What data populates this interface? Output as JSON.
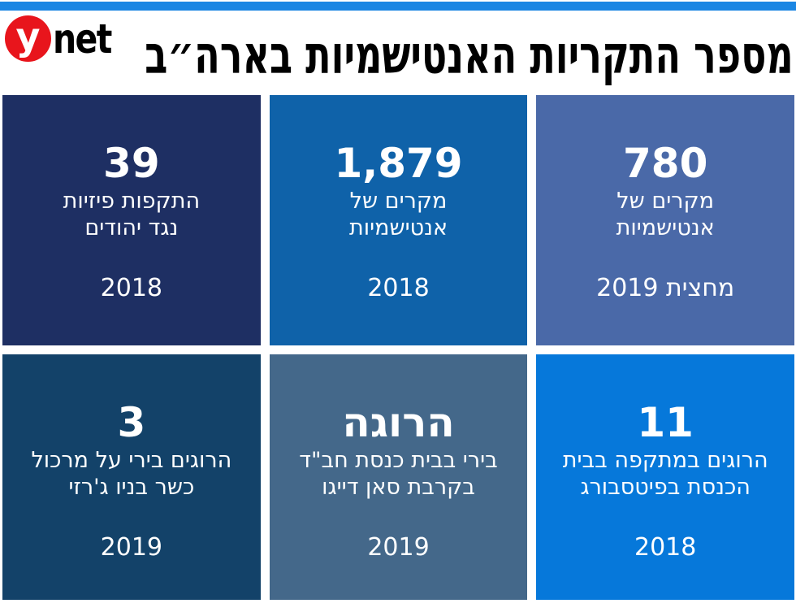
{
  "topbar": {
    "color": "#1b86e3"
  },
  "brand": {
    "logo_y": "y",
    "logo_net": "net",
    "logo_red": "#e8151c"
  },
  "header": {
    "title": "מספר התקריות האנטישמיות בארה״ב"
  },
  "tiles": [
    {
      "name": "antisemitism-cases-2019h",
      "number": "780",
      "desc_line1": "מקרים של",
      "desc_line2": "אנטישמיות",
      "year": "מחצית 2019",
      "bg": "#4a69a8"
    },
    {
      "name": "antisemitism-cases-2018",
      "number": "1,879",
      "desc_line1": "מקרים של",
      "desc_line2": "אנטישמיות",
      "year": "2018",
      "bg": "#0f62a9"
    },
    {
      "name": "physical-attacks-2018",
      "number": "39",
      "desc_line1": "התקפות פיזיות",
      "desc_line2": "נגד יהודים",
      "year": "2018",
      "bg": "#1e2f63"
    },
    {
      "name": "pittsburgh-deaths-2018",
      "number": "11",
      "desc_line1": "הרוגים במתקפה בבית",
      "desc_line2": "הכנסת בפיטסבורג",
      "year": "2018",
      "bg": "#0678da"
    },
    {
      "name": "poway-death-2019",
      "number": "הרוגה",
      "desc_line1": "בירי בבית כנסת חב\"ד",
      "desc_line2": "בקרבת סאן דייגו",
      "year": "2019",
      "bg": "#44688a"
    },
    {
      "name": "jersey-deaths-2019",
      "number": "3",
      "desc_line1": "הרוגים בירי על מרכול",
      "desc_line2": "כשר בניו ג'רזי",
      "year": "2019",
      "bg": "#134269"
    }
  ],
  "chart_data": {
    "type": "table",
    "title": "מספר התקריות האנטישמיות בארה״ב",
    "items": [
      {
        "value": 780,
        "label": "מקרים של אנטישמיות",
        "period": "מחצית 2019"
      },
      {
        "value": 1879,
        "label": "מקרים של אנטישמיות",
        "period": "2018"
      },
      {
        "value": 39,
        "label": "התקפות פיזיות נגד יהודים",
        "period": "2018"
      },
      {
        "value": 11,
        "label": "הרוגים במתקפה בבית הכנסת בפיטסבורג",
        "period": "2018"
      },
      {
        "value": 1,
        "label": "הרוגה בירי בבית כנסת חב\"ד בקרבת סאן דייגו",
        "period": "2019"
      },
      {
        "value": 3,
        "label": "הרוגים בירי על מרכול כשר בניו ג'רזי",
        "period": "2019"
      }
    ]
  }
}
